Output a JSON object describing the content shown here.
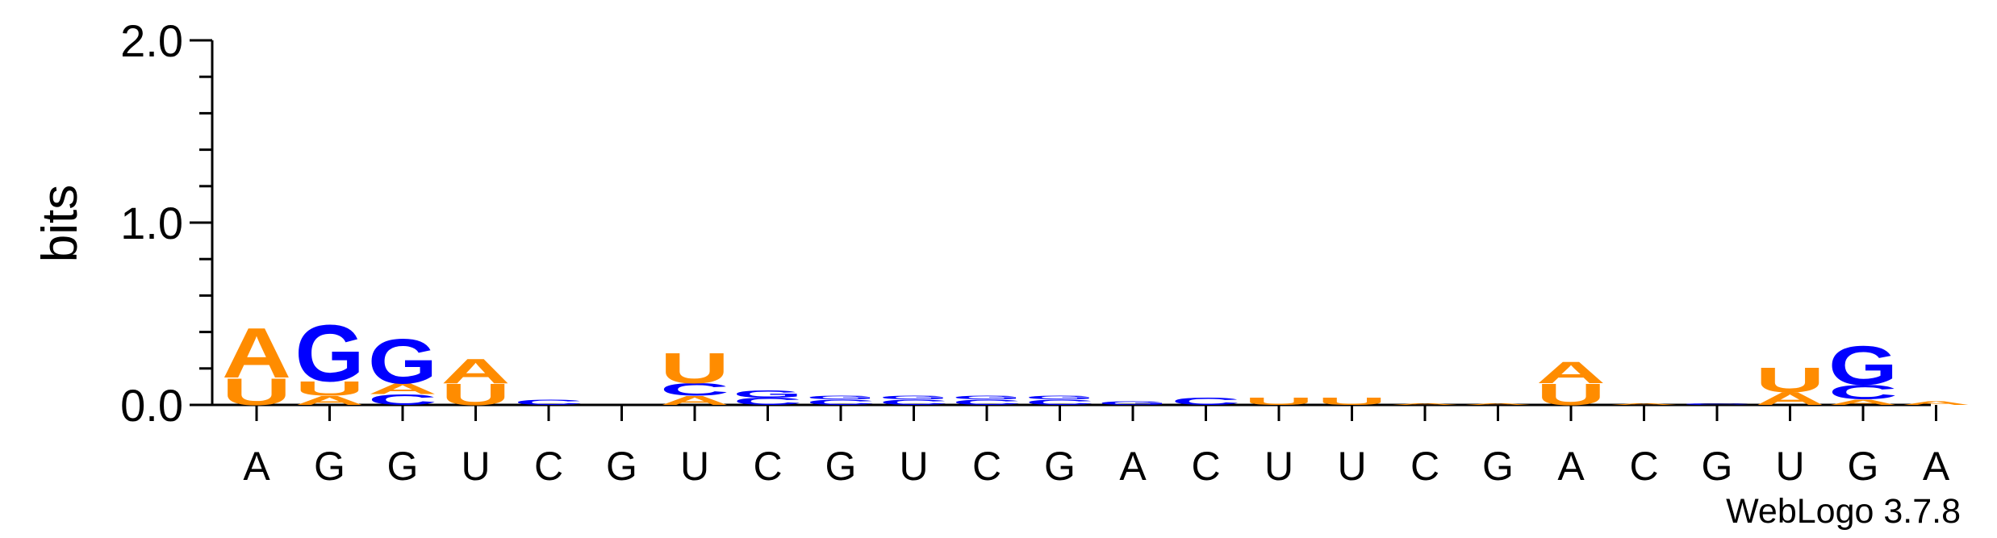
{
  "chart_data": {
    "type": "sequence-logo",
    "ylabel": "bits",
    "ylim": [
      0,
      2.0
    ],
    "yticks": [
      {
        "value": 0.0,
        "label": "0.0"
      },
      {
        "value": 1.0,
        "label": "1.0"
      },
      {
        "value": 2.0,
        "label": "2.0"
      }
    ],
    "y_minor_step": 0.2,
    "x_labels": [
      "A",
      "G",
      "G",
      "U",
      "C",
      "G",
      "U",
      "C",
      "G",
      "U",
      "C",
      "G",
      "A",
      "C",
      "U",
      "U",
      "C",
      "G",
      "A",
      "C",
      "G",
      "U",
      "G",
      "A"
    ],
    "colors": {
      "A": "#ff8c00",
      "U": "#ff8c00",
      "G": "#0000ff",
      "C": "#0000ff"
    },
    "positions": [
      [
        {
          "letter": "U",
          "bits": 0.15
        },
        {
          "letter": "A",
          "bits": 0.28
        }
      ],
      [
        {
          "letter": "A",
          "bits": 0.05
        },
        {
          "letter": "U",
          "bits": 0.08
        },
        {
          "letter": "G",
          "bits": 0.32
        }
      ],
      [
        {
          "letter": "C",
          "bits": 0.06
        },
        {
          "letter": "A",
          "bits": 0.06
        },
        {
          "letter": "G",
          "bits": 0.25
        }
      ],
      [
        {
          "letter": "U",
          "bits": 0.12
        },
        {
          "letter": "A",
          "bits": 0.14
        }
      ],
      [
        {
          "letter": "C",
          "bits": 0.03
        }
      ],
      [],
      [
        {
          "letter": "A",
          "bits": 0.05
        },
        {
          "letter": "C",
          "bits": 0.07
        },
        {
          "letter": "U",
          "bits": 0.17
        }
      ],
      [
        {
          "letter": "C",
          "bits": 0.04
        },
        {
          "letter": "G",
          "bits": 0.04
        }
      ],
      [
        {
          "letter": "C",
          "bits": 0.03
        },
        {
          "letter": "G",
          "bits": 0.02
        }
      ],
      [
        {
          "letter": "C",
          "bits": 0.03
        },
        {
          "letter": "G",
          "bits": 0.02
        }
      ],
      [
        {
          "letter": "C",
          "bits": 0.03
        },
        {
          "letter": "G",
          "bits": 0.02
        }
      ],
      [
        {
          "letter": "C",
          "bits": 0.03
        },
        {
          "letter": "G",
          "bits": 0.02
        }
      ],
      [
        {
          "letter": "G",
          "bits": 0.02
        }
      ],
      [
        {
          "letter": "C",
          "bits": 0.04
        }
      ],
      [
        {
          "letter": "U",
          "bits": 0.04
        }
      ],
      [
        {
          "letter": "U",
          "bits": 0.04
        }
      ],
      [
        {
          "letter": "A",
          "bits": 0.01
        }
      ],
      [
        {
          "letter": "A",
          "bits": 0.01
        }
      ],
      [
        {
          "letter": "U",
          "bits": 0.12
        },
        {
          "letter": "A",
          "bits": 0.12
        }
      ],
      [
        {
          "letter": "A",
          "bits": 0.01
        }
      ],
      [
        {
          "letter": "C",
          "bits": 0.01
        }
      ],
      [
        {
          "letter": "A",
          "bits": 0.07
        },
        {
          "letter": "U",
          "bits": 0.14
        }
      ],
      [
        {
          "letter": "A",
          "bits": 0.03
        },
        {
          "letter": "C",
          "bits": 0.08
        },
        {
          "letter": "G",
          "bits": 0.22
        }
      ],
      [
        {
          "letter": "A",
          "bits": 0.02
        }
      ]
    ]
  },
  "footer": {
    "credit": "WebLogo 3.7.8"
  }
}
